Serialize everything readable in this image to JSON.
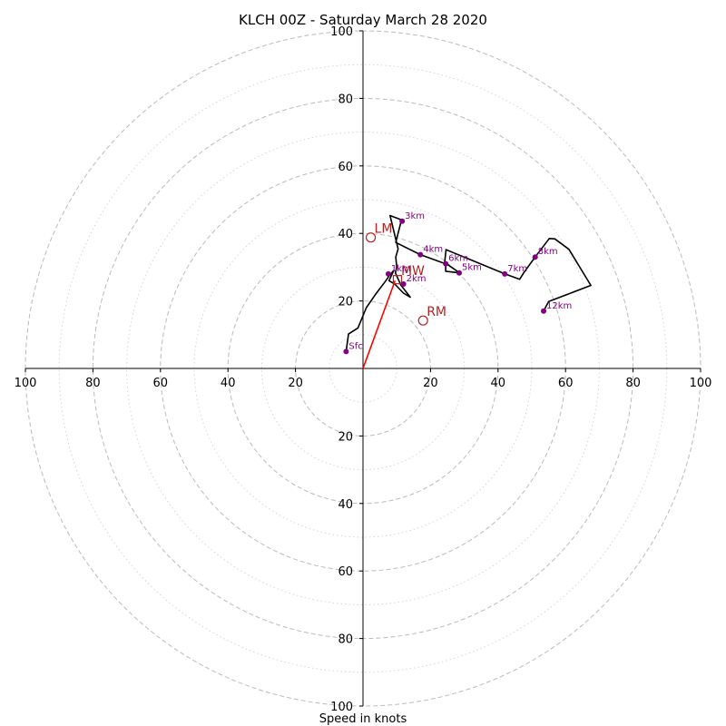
{
  "chart_data": {
    "type": "hodograph",
    "title": "KLCH 00Z - Saturday March 28 2020",
    "xlabel": "Speed in knots",
    "ylabel": "",
    "xlim": [
      -100,
      100
    ],
    "ylim": [
      -100,
      100
    ],
    "ring_major": [
      20,
      40,
      60,
      80,
      100
    ],
    "ring_minor": [
      10,
      30,
      50,
      70,
      90
    ],
    "tick_values": [
      20,
      40,
      60,
      80,
      100
    ],
    "tick_labels": [
      "20",
      "40",
      "60",
      "80",
      "100"
    ],
    "grid": true,
    "colors": {
      "trace": "#000000",
      "height_marker": "#800080",
      "motion": "#b22222",
      "shear_vector": "#ff0000",
      "grid": "#bbbbbb"
    },
    "trace": [
      [
        -5,
        5
      ],
      [
        -4.3,
        10.2
      ],
      [
        -1.5,
        12
      ],
      [
        1,
        18
      ],
      [
        3.6,
        21.8
      ],
      [
        6.7,
        25.9
      ],
      [
        7.8,
        27.5
      ],
      [
        9.1,
        29
      ],
      [
        7.7,
        26
      ],
      [
        9.4,
        25
      ],
      [
        12,
        22.3
      ],
      [
        14,
        21.1
      ],
      [
        11.2,
        24.7
      ],
      [
        9.6,
        28.3
      ],
      [
        10,
        30
      ],
      [
        9.7,
        33
      ],
      [
        10.4,
        35.4
      ],
      [
        8,
        45.3
      ],
      [
        11.4,
        44
      ],
      [
        9.7,
        37.3
      ],
      [
        17,
        33.7
      ],
      [
        24.5,
        31
      ],
      [
        24.5,
        28.8
      ],
      [
        28.6,
        28.3
      ],
      [
        24.2,
        31.4
      ],
      [
        24.6,
        35.2
      ],
      [
        42,
        28
      ],
      [
        46.4,
        26.4
      ],
      [
        47.8,
        28.6
      ],
      [
        51,
        33
      ],
      [
        55.2,
        38.5
      ],
      [
        56.8,
        38.4
      ],
      [
        61,
        35.3
      ],
      [
        67.5,
        24.6
      ],
      [
        55,
        19.8
      ],
      [
        53.5,
        17
      ]
    ],
    "height_markers": [
      {
        "label": "Sfc",
        "u": -5,
        "v": 5
      },
      {
        "label": "1km",
        "u": 7.5,
        "v": 28
      },
      {
        "label": "2km",
        "u": 12,
        "v": 25
      },
      {
        "label": "3km",
        "u": 11.6,
        "v": 43.6
      },
      {
        "label": "4km",
        "u": 17,
        "v": 33.7
      },
      {
        "label": "5km",
        "u": 28.5,
        "v": 28.3
      },
      {
        "label": "6km",
        "u": 24.5,
        "v": 31
      },
      {
        "label": "7km",
        "u": 42,
        "v": 28
      },
      {
        "label": "8km",
        "u": 51,
        "v": 33
      },
      {
        "label": "12km",
        "u": 53.5,
        "v": 17
      }
    ],
    "storm_motions": [
      {
        "label": "LM",
        "u": 2.3,
        "v": 38.8,
        "marker": "circle"
      },
      {
        "label": "RM",
        "u": 17.8,
        "v": 14.2,
        "marker": "circle"
      },
      {
        "label": "MW",
        "u": 10.2,
        "v": 26.3,
        "marker": "square"
      }
    ],
    "shear_vector": {
      "from": [
        0,
        0
      ],
      "to": [
        9.5,
        26
      ]
    }
  }
}
